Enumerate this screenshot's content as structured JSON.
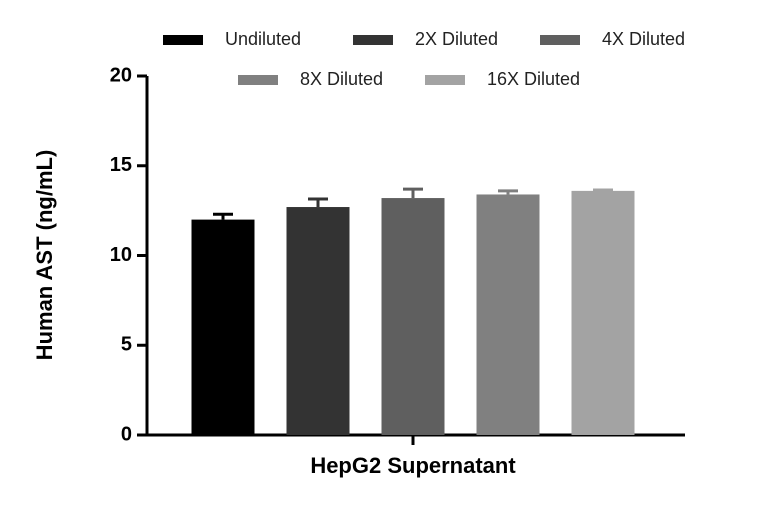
{
  "chart_data": {
    "type": "bar",
    "xlabel": "HepG2 Supernatant",
    "ylabel": "Human AST (ng/mL)",
    "categories": [
      null
    ],
    "series": [
      {
        "name": "Undiluted",
        "color": "#000000",
        "values": [
          12.0
        ],
        "errors": [
          0.3
        ]
      },
      {
        "name": "2X Diluted",
        "color": "#333333",
        "values": [
          12.7
        ],
        "errors": [
          0.45
        ]
      },
      {
        "name": "4X Diluted",
        "color": "#5f5f5f",
        "values": [
          13.2
        ],
        "errors": [
          0.5
        ]
      },
      {
        "name": "8X Diluted",
        "color": "#808080",
        "values": [
          13.4
        ],
        "errors": [
          0.2
        ]
      },
      {
        "name": "16X Diluted",
        "color": "#a3a3a3",
        "values": [
          13.6
        ],
        "errors": [
          0.05
        ]
      }
    ],
    "ylim": [
      0,
      20
    ],
    "yticks": [
      0,
      5,
      10,
      15,
      20
    ],
    "legend": "top"
  }
}
